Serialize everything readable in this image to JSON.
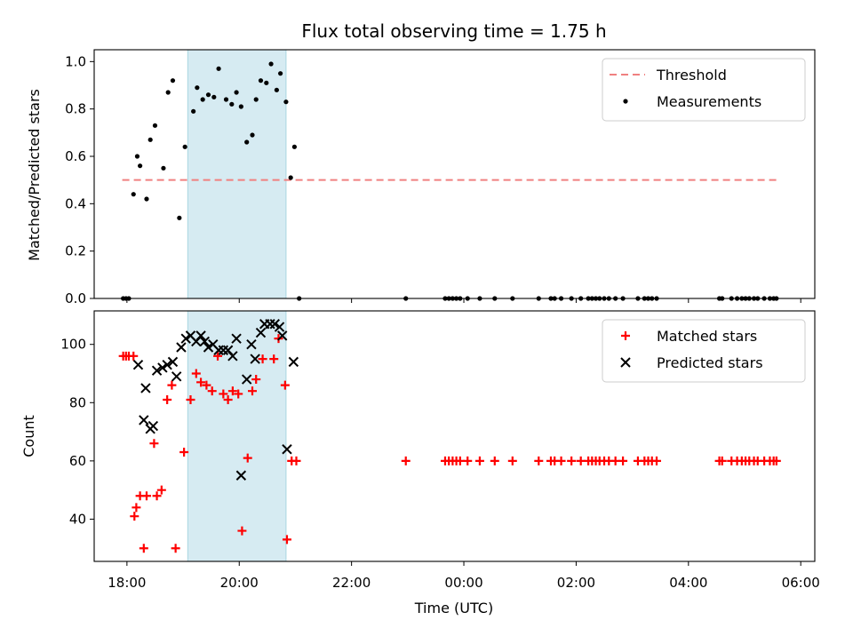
{
  "title": "Flux total observing time = 1.75 h",
  "chart_data": [
    {
      "type": "scatter",
      "ylabel": "Matched/Predicted stars",
      "xlabel": "",
      "xlim": [
        "17:25",
        "06:15"
      ],
      "ylim": [
        0,
        1.05
      ],
      "yticks": [
        "0.0",
        "0.2",
        "0.4",
        "0.6",
        "0.8",
        "1.0"
      ],
      "legend": {
        "placement": "top-right",
        "items": [
          "Threshold",
          "Measurements"
        ]
      },
      "shaded_interval": [
        "19:05",
        "20:50"
      ],
      "threshold": {
        "name": "Threshold",
        "value": 0.5,
        "x": [
          "17:55",
          "05:35"
        ],
        "color": "#f08080"
      },
      "series": [
        {
          "name": "Measurements",
          "color": "#000000",
          "points": [
            [
              "17:56",
              0
            ],
            [
              "17:59",
              0
            ],
            [
              "18:02",
              0
            ],
            [
              "18:07",
              0.44
            ],
            [
              "18:11",
              0.6
            ],
            [
              "18:14",
              0.56
            ],
            [
              "18:21",
              0.42
            ],
            [
              "18:25",
              0.67
            ],
            [
              "18:30",
              0.73
            ],
            [
              "18:39",
              0.55
            ],
            [
              "18:44",
              0.87
            ],
            [
              "18:49",
              0.92
            ],
            [
              "18:56",
              0.34
            ],
            [
              "19:02",
              0.64
            ],
            [
              "19:11",
              0.79
            ],
            [
              "19:15",
              0.89
            ],
            [
              "19:21",
              0.84
            ],
            [
              "19:27",
              0.86
            ],
            [
              "19:33",
              0.85
            ],
            [
              "19:38",
              0.97
            ],
            [
              "19:46",
              0.84
            ],
            [
              "19:52",
              0.82
            ],
            [
              "19:57",
              0.87
            ],
            [
              "20:02",
              0.81
            ],
            [
              "20:08",
              0.66
            ],
            [
              "20:14",
              0.69
            ],
            [
              "20:18",
              0.84
            ],
            [
              "20:23",
              0.92
            ],
            [
              "20:29",
              0.91
            ],
            [
              "20:34",
              0.99
            ],
            [
              "20:40",
              0.88
            ],
            [
              "20:44",
              0.95
            ],
            [
              "20:50",
              0.83
            ],
            [
              "20:55",
              0.51
            ],
            [
              "20:59",
              0.64
            ],
            [
              "21:04",
              0
            ],
            [
              "22:58",
              0
            ],
            [
              "23:40",
              0
            ],
            [
              "23:44",
              0
            ],
            [
              "23:48",
              0
            ],
            [
              "23:52",
              0
            ],
            [
              "23:56",
              0
            ],
            [
              "00:04",
              0
            ],
            [
              "00:17",
              0
            ],
            [
              "00:33",
              0
            ],
            [
              "00:52",
              0
            ],
            [
              "01:20",
              0
            ],
            [
              "01:33",
              0
            ],
            [
              "01:37",
              0
            ],
            [
              "01:44",
              0
            ],
            [
              "01:55",
              0
            ],
            [
              "02:05",
              0
            ],
            [
              "02:13",
              0
            ],
            [
              "02:17",
              0
            ],
            [
              "02:21",
              0
            ],
            [
              "02:25",
              0
            ],
            [
              "02:30",
              0
            ],
            [
              "02:35",
              0
            ],
            [
              "02:42",
              0
            ],
            [
              "02:50",
              0
            ],
            [
              "03:06",
              0
            ],
            [
              "03:13",
              0
            ],
            [
              "03:17",
              0
            ],
            [
              "03:21",
              0
            ],
            [
              "03:26",
              0
            ],
            [
              "04:33",
              0
            ],
            [
              "04:36",
              0
            ],
            [
              "04:46",
              0
            ],
            [
              "04:52",
              0
            ],
            [
              "04:57",
              0
            ],
            [
              "05:01",
              0
            ],
            [
              "05:05",
              0
            ],
            [
              "05:10",
              0
            ],
            [
              "05:14",
              0
            ],
            [
              "05:21",
              0
            ],
            [
              "05:27",
              0
            ],
            [
              "05:31",
              0
            ],
            [
              "05:34",
              0
            ]
          ]
        }
      ]
    },
    {
      "type": "scatter",
      "ylabel": "Count",
      "xlabel": "Time (UTC)",
      "xlim": [
        "17:25",
        "06:15"
      ],
      "ylim": [
        25.5,
        111.5
      ],
      "yticks": [
        "40",
        "60",
        "80",
        "100"
      ],
      "xticks": [
        "18:00",
        "20:00",
        "22:00",
        "00:00",
        "02:00",
        "04:00",
        "06:00"
      ],
      "legend": {
        "placement": "top-right",
        "items": [
          "Matched stars",
          "Predicted stars"
        ]
      },
      "shaded_interval": [
        "19:05",
        "20:50"
      ],
      "series": [
        {
          "name": "Matched stars",
          "marker": "plus",
          "color": "#ff0000",
          "points": [
            [
              "17:56",
              96
            ],
            [
              "17:59",
              96
            ],
            [
              "18:02",
              96
            ],
            [
              "18:07",
              96
            ],
            [
              "18:08",
              41
            ],
            [
              "18:10",
              44
            ],
            [
              "18:14",
              48
            ],
            [
              "18:18",
              30
            ],
            [
              "18:21",
              48
            ],
            [
              "18:29",
              66
            ],
            [
              "18:32",
              48
            ],
            [
              "18:37",
              50
            ],
            [
              "18:43",
              81
            ],
            [
              "18:48",
              86
            ],
            [
              "18:52",
              30
            ],
            [
              "19:01",
              63
            ],
            [
              "19:08",
              81
            ],
            [
              "19:14",
              90
            ],
            [
              "19:19",
              87
            ],
            [
              "19:25",
              86
            ],
            [
              "19:31",
              84
            ],
            [
              "19:37",
              96
            ],
            [
              "19:43",
              83
            ],
            [
              "19:48",
              81
            ],
            [
              "19:53",
              84
            ],
            [
              "19:59",
              83
            ],
            [
              "20:03",
              36
            ],
            [
              "20:09",
              61
            ],
            [
              "20:14",
              84
            ],
            [
              "20:18",
              88
            ],
            [
              "20:25",
              95
            ],
            [
              "20:37",
              95
            ],
            [
              "20:42",
              102
            ],
            [
              "20:49",
              86
            ],
            [
              "20:51",
              33
            ],
            [
              "20:56",
              60
            ],
            [
              "21:01",
              60
            ],
            [
              "22:58",
              60
            ],
            [
              "23:40",
              60
            ],
            [
              "23:44",
              60
            ],
            [
              "23:48",
              60
            ],
            [
              "23:52",
              60
            ],
            [
              "23:56",
              60
            ],
            [
              "00:04",
              60
            ],
            [
              "00:17",
              60
            ],
            [
              "00:33",
              60
            ],
            [
              "00:52",
              60
            ],
            [
              "01:20",
              60
            ],
            [
              "01:33",
              60
            ],
            [
              "01:37",
              60
            ],
            [
              "01:44",
              60
            ],
            [
              "01:55",
              60
            ],
            [
              "02:05",
              60
            ],
            [
              "02:13",
              60
            ],
            [
              "02:17",
              60
            ],
            [
              "02:21",
              60
            ],
            [
              "02:25",
              60
            ],
            [
              "02:30",
              60
            ],
            [
              "02:35",
              60
            ],
            [
              "02:42",
              60
            ],
            [
              "02:50",
              60
            ],
            [
              "03:06",
              60
            ],
            [
              "03:13",
              60
            ],
            [
              "03:17",
              60
            ],
            [
              "03:21",
              60
            ],
            [
              "03:26",
              60
            ],
            [
              "04:33",
              60
            ],
            [
              "04:36",
              60
            ],
            [
              "04:46",
              60
            ],
            [
              "04:52",
              60
            ],
            [
              "04:57",
              60
            ],
            [
              "05:01",
              60
            ],
            [
              "05:05",
              60
            ],
            [
              "05:10",
              60
            ],
            [
              "05:14",
              60
            ],
            [
              "05:21",
              60
            ],
            [
              "05:27",
              60
            ],
            [
              "05:31",
              60
            ],
            [
              "05:34",
              60
            ]
          ]
        },
        {
          "name": "Predicted stars",
          "marker": "x",
          "color": "#000000",
          "points": [
            [
              "18:12",
              93
            ],
            [
              "18:18",
              74
            ],
            [
              "18:20",
              85
            ],
            [
              "18:25",
              71
            ],
            [
              "18:28",
              72
            ],
            [
              "18:32",
              91
            ],
            [
              "18:38",
              92
            ],
            [
              "18:43",
              93
            ],
            [
              "18:49",
              94
            ],
            [
              "18:53",
              89
            ],
            [
              "18:58",
              99
            ],
            [
              "19:03",
              102
            ],
            [
              "19:08",
              103
            ],
            [
              "19:14",
              101
            ],
            [
              "19:19",
              103
            ],
            [
              "19:23",
              101
            ],
            [
              "19:27",
              99
            ],
            [
              "19:32",
              100
            ],
            [
              "19:38",
              98
            ],
            [
              "19:43",
              98
            ],
            [
              "19:48",
              98
            ],
            [
              "19:53",
              96
            ],
            [
              "19:57",
              102
            ],
            [
              "20:02",
              55
            ],
            [
              "20:08",
              88
            ],
            [
              "20:13",
              100
            ],
            [
              "20:17",
              95
            ],
            [
              "20:23",
              104
            ],
            [
              "20:27",
              107
            ],
            [
              "20:33",
              107
            ],
            [
              "20:38",
              107
            ],
            [
              "20:43",
              106
            ],
            [
              "20:46",
              103
            ],
            [
              "20:51",
              64
            ],
            [
              "20:58",
              94
            ]
          ]
        }
      ]
    }
  ]
}
